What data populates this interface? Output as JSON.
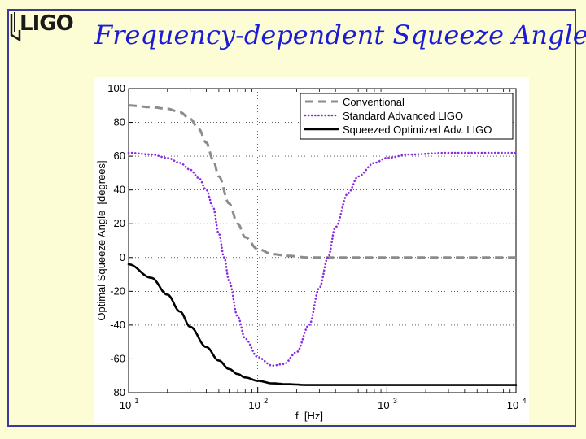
{
  "slide": {
    "logo_text": "LIGO",
    "title": "Frequency-dependent Squeeze Angle"
  },
  "colors": {
    "background": "#fdfdd5",
    "frame": "#3a3aa0",
    "title": "#1c1cd6",
    "conventional": "#8c8c8c",
    "standard": "#8a2be2",
    "squeezed": "#000000"
  },
  "chart_data": {
    "type": "line",
    "xscale": "log",
    "xlim": [
      10,
      10000
    ],
    "ylim": [
      -80,
      100
    ],
    "xlabel": "f  [Hz]",
    "ylabel": "Optimal Squeeze Angle  [degrees]",
    "x_ticks": [
      {
        "value": 10,
        "base": "10",
        "exp": "1"
      },
      {
        "value": 100,
        "base": "10",
        "exp": "2"
      },
      {
        "value": 1000,
        "base": "10",
        "exp": "3"
      },
      {
        "value": 10000,
        "base": "10",
        "exp": "4"
      }
    ],
    "y_ticks": [
      100,
      80,
      60,
      40,
      20,
      0,
      -20,
      -40,
      -60,
      -80
    ],
    "grid": true,
    "legend_position": "top-right",
    "series": [
      {
        "name": "Conventional",
        "style": "dashed",
        "color": "#8c8c8c",
        "x": [
          10,
          15,
          20,
          25,
          30,
          35,
          40,
          45,
          50,
          60,
          70,
          80,
          100,
          130,
          170,
          250,
          400,
          1000,
          10000
        ],
        "y": [
          90,
          89,
          88,
          86,
          82,
          76,
          68,
          58,
          48,
          32,
          20,
          12,
          5,
          2,
          1,
          0,
          0,
          0,
          0
        ]
      },
      {
        "name": "Standard Advanced LIGO",
        "style": "dotted",
        "color": "#8a2be2",
        "x": [
          10,
          15,
          20,
          25,
          30,
          35,
          40,
          45,
          50,
          55,
          60,
          70,
          80,
          100,
          130,
          160,
          200,
          250,
          300,
          350,
          400,
          500,
          600,
          800,
          1000,
          1500,
          3000,
          10000
        ],
        "y": [
          62,
          61,
          59,
          56,
          52,
          47,
          40,
          30,
          14,
          0,
          -14,
          -35,
          -48,
          -59,
          -64,
          -63,
          -56,
          -40,
          -18,
          0,
          18,
          38,
          48,
          56,
          59,
          61,
          62,
          62
        ]
      },
      {
        "name": "Squeezed Optimized Adv. LIGO",
        "style": "solid",
        "color": "#000000",
        "x": [
          10,
          15,
          20,
          25,
          30,
          40,
          50,
          60,
          70,
          80,
          100,
          130,
          170,
          250,
          400,
          1000,
          10000
        ],
        "y": [
          -4,
          -12,
          -22,
          -32,
          -41,
          -53,
          -61,
          -66,
          -69,
          -71,
          -73,
          -74.5,
          -75,
          -75.5,
          -75.5,
          -75.5,
          -75.5
        ]
      }
    ]
  }
}
